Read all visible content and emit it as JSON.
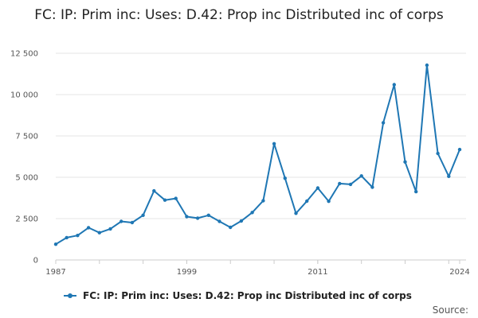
{
  "colors": {
    "series": "#1f77b4",
    "grid": "#e6e6e6",
    "axis": "#cccccc"
  },
  "footer": {
    "source_label": "Source:"
  },
  "chart_data": {
    "type": "line",
    "title": "FC: IP: Prim inc: Uses: D.42: Prop inc Distributed inc of corps",
    "xlabel": "",
    "ylabel": "",
    "xlim": [
      1987,
      2024
    ],
    "ylim": [
      0,
      12500
    ],
    "x_ticks": [
      1987,
      1999,
      2011,
      2024
    ],
    "x_tick_labels": [
      "1987",
      "1999",
      "2011",
      "2024"
    ],
    "y_ticks": [
      0,
      2500,
      5000,
      7500,
      10000,
      12500
    ],
    "y_tick_labels": [
      "0",
      "2 500",
      "5 000",
      "7 500",
      "10 000",
      "12 500"
    ],
    "grid": true,
    "legend_position": "bottom",
    "x": [
      1987,
      1988,
      1989,
      1990,
      1991,
      1992,
      1993,
      1994,
      1995,
      1996,
      1997,
      1998,
      1999,
      2000,
      2001,
      2002,
      2003,
      2004,
      2005,
      2006,
      2007,
      2008,
      2009,
      2010,
      2011,
      2012,
      2013,
      2014,
      2015,
      2016,
      2017,
      2018,
      2019,
      2020,
      2021,
      2022,
      2023,
      2024
    ],
    "series": [
      {
        "name": "FC: IP: Prim inc: Uses: D.42: Prop inc Distributed inc of corps",
        "values": [
          950,
          1350,
          1480,
          1950,
          1650,
          1880,
          2330,
          2260,
          2700,
          4180,
          3620,
          3720,
          2620,
          2530,
          2700,
          2330,
          1970,
          2360,
          2870,
          3580,
          7030,
          4940,
          2820,
          3560,
          4350,
          3550,
          4620,
          4570,
          5080,
          4400,
          8300,
          10600,
          5930,
          4130,
          11780,
          6440,
          5060,
          6680
        ]
      }
    ]
  }
}
